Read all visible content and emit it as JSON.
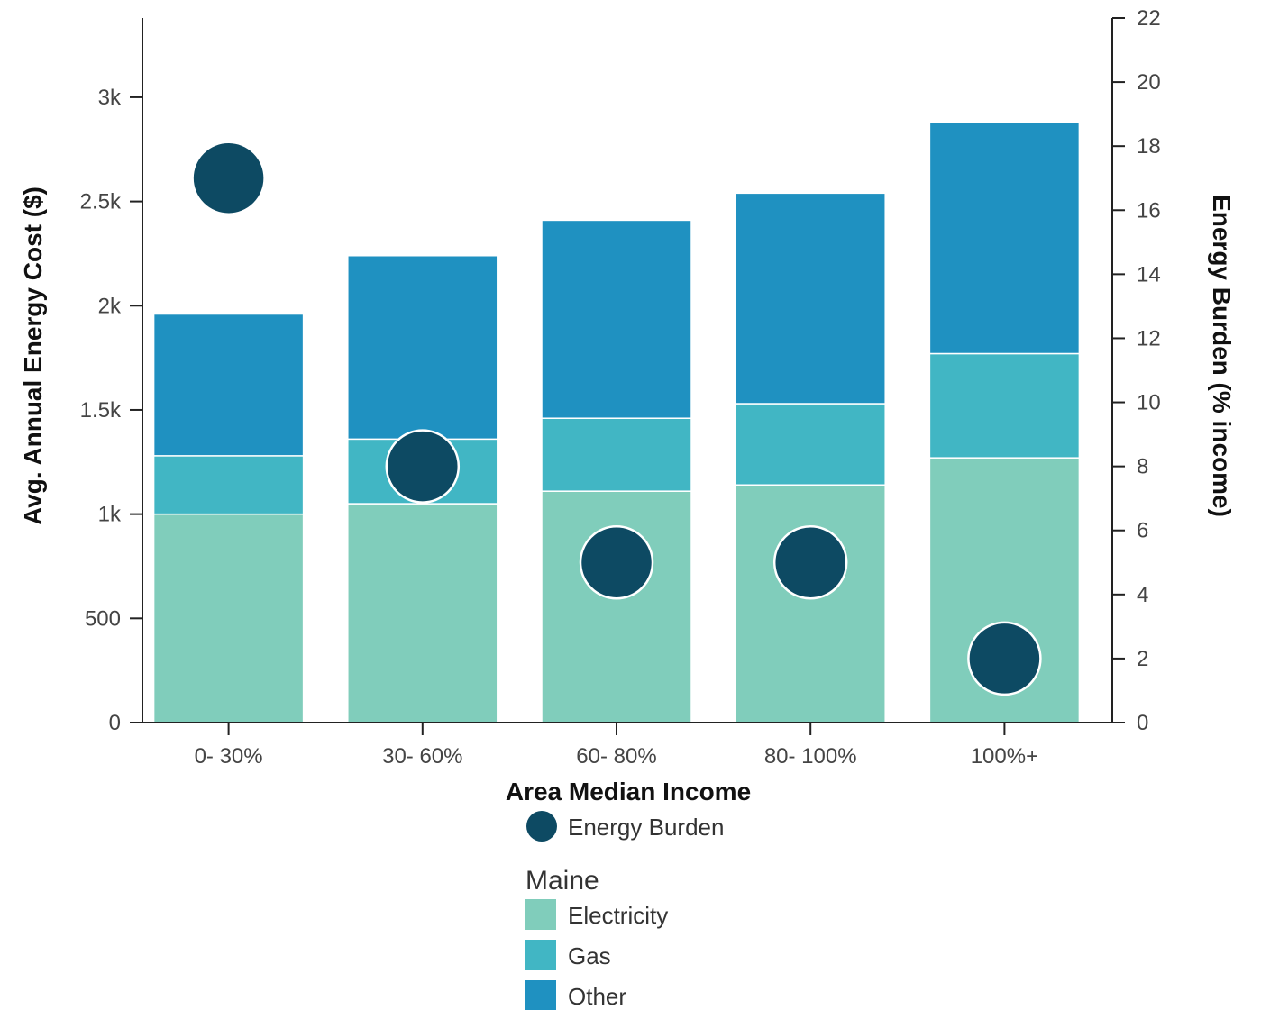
{
  "chart_data": {
    "type": "bar",
    "stacked": true,
    "categories": [
      "0- 30%",
      "30- 60%",
      "60- 80%",
      "80- 100%",
      "100%+"
    ],
    "series": [
      {
        "name": "Electricity",
        "values": [
          1000,
          1050,
          1110,
          1140,
          1270
        ],
        "color": "#80cdbb"
      },
      {
        "name": "Gas",
        "values": [
          280,
          310,
          350,
          390,
          500
        ],
        "color": "#41b6c4"
      },
      {
        "name": "Other",
        "values": [
          680,
          880,
          950,
          1010,
          1110
        ],
        "color": "#1f91c1"
      }
    ],
    "overlay": {
      "name": "Energy Burden",
      "type": "scatter",
      "axis": "right",
      "values": [
        17,
        8,
        5,
        5,
        2
      ],
      "color": "#0d4a63"
    },
    "xlabel": "Area Median Income",
    "ylabel": "Avg. Annual Energy Cost ($)",
    "y2label": "Energy Burden (% income)",
    "ylim": [
      0,
      3380
    ],
    "y2lim": [
      0,
      22
    ],
    "yticks": [
      0,
      500,
      1000,
      1500,
      2000,
      2500,
      3000
    ],
    "ytick_labels": [
      "0",
      "500",
      "1k",
      "1.5k",
      "2k",
      "2.5k",
      "3k"
    ],
    "y2ticks": [
      0,
      2,
      4,
      6,
      8,
      10,
      12,
      14,
      16,
      18,
      20,
      22
    ],
    "legend": {
      "marker_label": "Energy Burden",
      "group_title": "Maine",
      "placement": "bottom"
    }
  }
}
